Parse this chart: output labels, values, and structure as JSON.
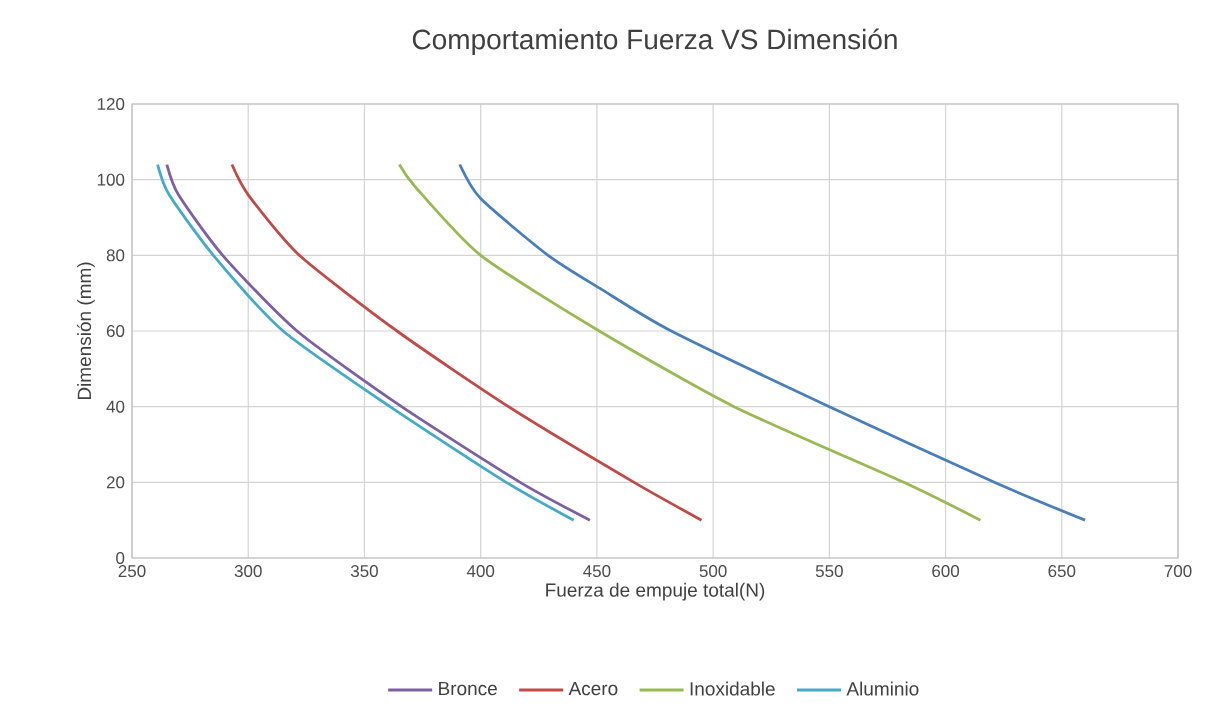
{
  "chart_data": {
    "type": "line",
    "title": "Comportamiento Fuerza VS Dimensión",
    "xlabel": "Fuerza de empuje total(N)",
    "ylabel": "Dimensión (mm)",
    "xlim": [
      250,
      700
    ],
    "xticks": [
      250,
      300,
      350,
      400,
      450,
      500,
      550,
      600,
      650,
      700
    ],
    "ylim": [
      0,
      120
    ],
    "yticks": [
      0,
      20,
      40,
      60,
      80,
      100,
      120
    ],
    "grid": true,
    "legend": "bottom",
    "marker": "none",
    "line_style": "solid",
    "series": [
      {
        "color": "#4a7ebb",
        "x": [
          391,
          400,
          429,
          452,
          482,
          550,
          621,
          660
        ],
        "values": [
          104,
          95,
          80,
          71,
          60,
          40,
          20,
          10
        ]
      },
      {
        "name": "Bronce",
        "color": "#7d60a0",
        "x": [
          265,
          270,
          289,
          321,
          366,
          417,
          447
        ],
        "values": [
          104,
          96,
          80,
          60,
          40,
          20,
          10
        ]
      },
      {
        "name": "Acero",
        "color": "#be4b48",
        "x": [
          293,
          300,
          322,
          364,
          412,
          466,
          495
        ],
        "values": [
          104,
          96,
          80,
          60,
          40,
          20,
          10
        ]
      },
      {
        "name": "Inoxidable",
        "color": "#98b954",
        "x": [
          365,
          372,
          400,
          451,
          509,
          582,
          615
        ],
        "values": [
          104,
          98,
          80,
          60,
          40,
          20,
          10
        ]
      },
      {
        "name": "Aluminio",
        "color": "#46aac5",
        "x": [
          261,
          266,
          285,
          315,
          361,
          411,
          440
        ],
        "values": [
          104,
          96,
          80,
          60,
          40,
          20,
          10
        ]
      }
    ]
  }
}
